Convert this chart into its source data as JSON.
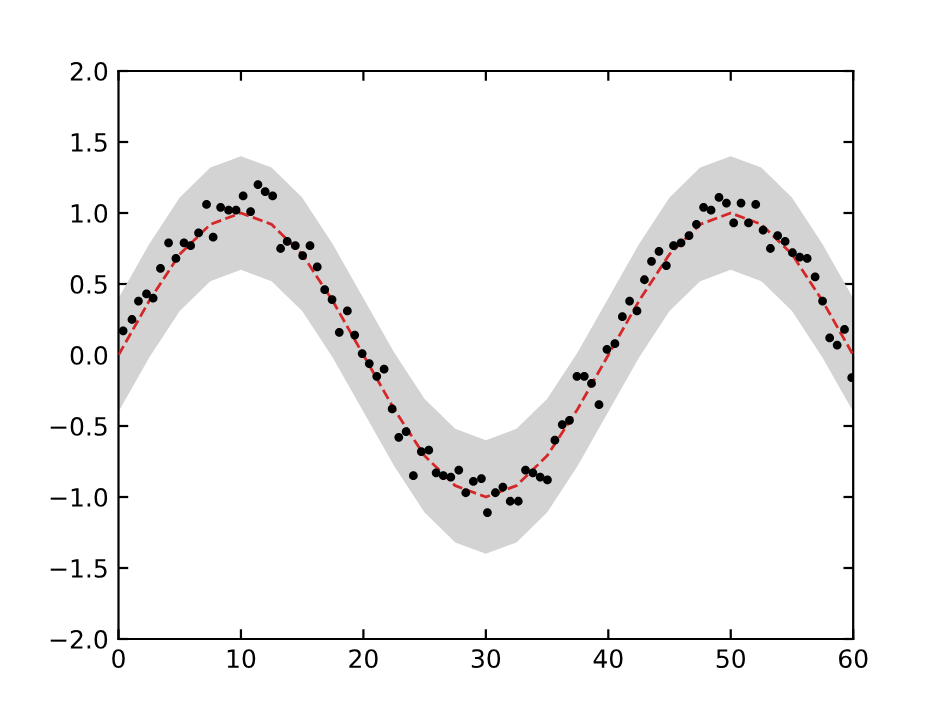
{
  "chart_data": {
    "type": "scatter",
    "xlim": [
      0,
      60
    ],
    "ylim": [
      -2.0,
      2.0
    ],
    "xticks": [
      0,
      10,
      20,
      30,
      40,
      50,
      60
    ],
    "yticks": [
      {
        "value": -2.0,
        "label": "−2.0"
      },
      {
        "value": -1.5,
        "label": "−1.5"
      },
      {
        "value": -1.0,
        "label": "−1.0"
      },
      {
        "value": -0.5,
        "label": "−0.5"
      },
      {
        "value": 0.0,
        "label": "0.0"
      },
      {
        "value": 0.5,
        "label": "0.5"
      },
      {
        "value": 1.0,
        "label": "1.0"
      },
      {
        "value": 1.5,
        "label": "1.5"
      },
      {
        "value": 2.0,
        "label": "2.0"
      }
    ],
    "grid": false,
    "legend": false,
    "series": [
      {
        "color": "#000000",
        "marker": "circle",
        "x": [
          0.38,
          1.1,
          1.63,
          2.29,
          2.83,
          3.43,
          4.09,
          4.69,
          5.35,
          5.89,
          6.54,
          7.19,
          7.73,
          8.34,
          8.99,
          9.6,
          10.18,
          10.79,
          11.39,
          11.98,
          12.59,
          13.24,
          13.78,
          14.44,
          15.04,
          15.64,
          16.23,
          16.84,
          17.44,
          18.03,
          18.69,
          19.29,
          19.9,
          20.48,
          21.09,
          21.69,
          22.35,
          22.89,
          23.49,
          24.08,
          24.73,
          25.34,
          25.94,
          26.53,
          27.14,
          27.79,
          28.36,
          28.98,
          29.64,
          30.13,
          30.78,
          31.39,
          31.99,
          32.65,
          33.24,
          33.84,
          34.44,
          35.03,
          35.64,
          36.24,
          36.83,
          37.44,
          38.04,
          38.63,
          39.24,
          39.89,
          40.54,
          41.15,
          41.74,
          42.34,
          42.95,
          43.53,
          44.14,
          44.74,
          45.33,
          45.94,
          46.59,
          47.2,
          47.78,
          48.39,
          49.04,
          49.65,
          50.24,
          50.84,
          51.45,
          52.04,
          52.64,
          53.24,
          53.83,
          54.44,
          55.04,
          55.63,
          56.24,
          56.89,
          57.5,
          58.08,
          58.69,
          59.29,
          59.88
        ],
        "values": [
          0.17,
          0.25,
          0.38,
          0.43,
          0.4,
          0.61,
          0.79,
          0.68,
          0.79,
          0.77,
          0.86,
          1.06,
          0.83,
          1.04,
          1.02,
          1.02,
          1.12,
          1.01,
          1.2,
          1.15,
          1.12,
          0.75,
          0.8,
          0.77,
          0.7,
          0.77,
          0.62,
          0.46,
          0.39,
          0.16,
          0.31,
          0.14,
          0.01,
          -0.06,
          -0.15,
          -0.1,
          -0.38,
          -0.58,
          -0.54,
          -0.85,
          -0.68,
          -0.67,
          -0.83,
          -0.85,
          -0.86,
          -0.81,
          -0.97,
          -0.89,
          -0.87,
          -1.11,
          -0.97,
          -0.93,
          -1.03,
          -1.03,
          -0.81,
          -0.83,
          -0.86,
          -0.88,
          -0.6,
          -0.49,
          -0.46,
          -0.15,
          -0.15,
          -0.2,
          -0.35,
          0.04,
          0.08,
          0.27,
          0.38,
          0.31,
          0.53,
          0.66,
          0.73,
          0.63,
          0.77,
          0.79,
          0.84,
          0.92,
          1.04,
          1.02,
          1.11,
          1.07,
          0.93,
          1.07,
          0.93,
          1.06,
          0.88,
          0.75,
          0.84,
          0.8,
          0.72,
          0.69,
          0.68,
          0.55,
          0.38,
          0.12,
          0.07,
          0.18,
          -0.16
        ]
      },
      {
        "type": "line",
        "color": "#d62728",
        "line_style": "dashed",
        "marker": "none",
        "x": [
          0,
          2.5,
          5,
          7.5,
          10,
          12.5,
          15,
          17.5,
          20,
          22.5,
          25,
          27.5,
          30,
          32.5,
          35,
          37.5,
          40,
          42.5,
          45,
          47.5,
          50,
          52.5,
          55,
          57.5,
          60
        ],
        "values": [
          0.0,
          0.38,
          0.71,
          0.92,
          1.0,
          0.92,
          0.71,
          0.38,
          0.0,
          -0.38,
          -0.71,
          -0.92,
          -1.0,
          -0.92,
          -0.71,
          -0.38,
          0.0,
          0.38,
          0.71,
          0.92,
          1.0,
          0.92,
          0.71,
          0.38,
          0.0
        ],
        "lower": [
          -0.4,
          -0.02,
          0.31,
          0.52,
          0.6,
          0.52,
          0.31,
          -0.02,
          -0.4,
          -0.78,
          -1.11,
          -1.32,
          -1.4,
          -1.32,
          -1.11,
          -0.78,
          -0.4,
          -0.02,
          0.31,
          0.52,
          0.6,
          0.52,
          0.31,
          -0.02,
          -0.4
        ],
        "upper": [
          0.4,
          0.78,
          1.11,
          1.32,
          1.4,
          1.32,
          1.11,
          0.78,
          0.4,
          0.02,
          -0.31,
          -0.52,
          -0.6,
          -0.52,
          -0.31,
          0.02,
          0.4,
          0.78,
          1.11,
          1.32,
          1.4,
          1.32,
          1.11,
          0.78,
          0.4
        ]
      }
    ]
  }
}
